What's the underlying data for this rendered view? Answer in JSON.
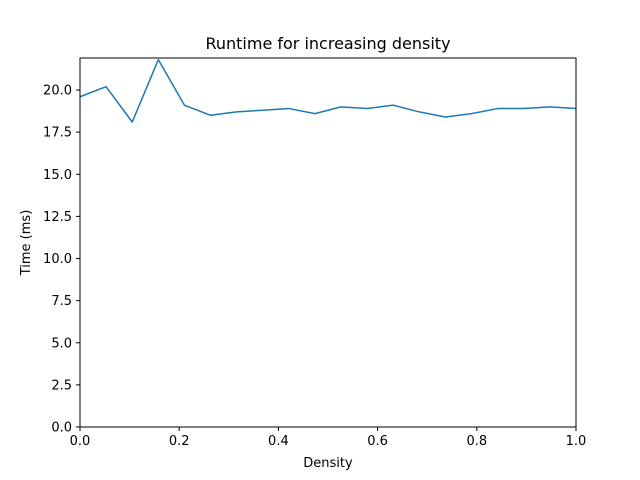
{
  "chart_data": {
    "type": "line",
    "title": "Runtime for increasing density",
    "xlabel": "Density",
    "ylabel": "Time (ms)",
    "xlim": [
      0.0,
      1.0
    ],
    "ylim": [
      0.0,
      21.9
    ],
    "x_ticks": [
      0.0,
      0.2,
      0.4,
      0.6,
      0.8,
      1.0
    ],
    "x_tick_labels": [
      "0.0",
      "0.2",
      "0.4",
      "0.6",
      "0.8",
      "1.0"
    ],
    "y_ticks": [
      0.0,
      2.5,
      5.0,
      7.5,
      10.0,
      12.5,
      15.0,
      17.5,
      20.0
    ],
    "y_tick_labels": [
      "0.0",
      "2.5",
      "5.0",
      "7.5",
      "10.0",
      "12.5",
      "15.0",
      "17.5",
      "20.0"
    ],
    "grid": false,
    "legend": "none",
    "series": [
      {
        "color": "#1f77b4",
        "x": [
          0.0,
          0.0526,
          0.1053,
          0.1579,
          0.2105,
          0.2632,
          0.3158,
          0.3684,
          0.4211,
          0.4737,
          0.5263,
          0.5789,
          0.6316,
          0.6842,
          0.7368,
          0.7895,
          0.8421,
          0.8947,
          0.9474,
          1.0
        ],
        "y": [
          19.6,
          20.2,
          18.1,
          21.8,
          19.1,
          18.5,
          18.7,
          18.8,
          18.9,
          18.6,
          19.0,
          18.9,
          19.1,
          18.7,
          18.4,
          18.6,
          18.9,
          18.9,
          19.0,
          18.9
        ]
      }
    ]
  }
}
